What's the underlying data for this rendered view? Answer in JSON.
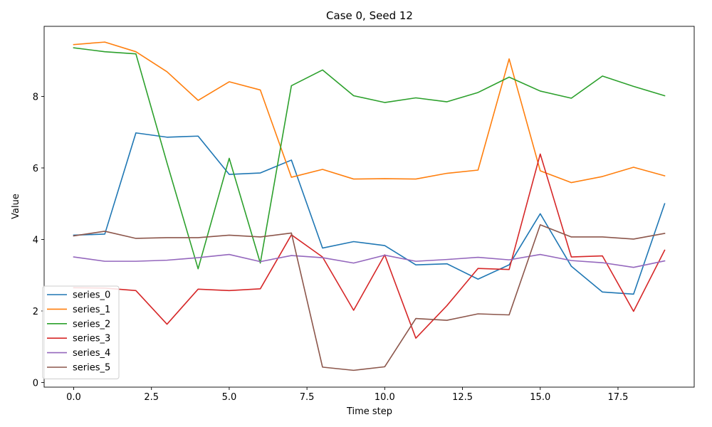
{
  "chart_data": {
    "type": "line",
    "title": "Case 0, Seed 12",
    "xlabel": "Time step",
    "ylabel": "Value",
    "xlim": [
      -0.95,
      19.95
    ],
    "ylim": [
      -0.13,
      9.96
    ],
    "xticks": [
      0.0,
      2.5,
      5.0,
      7.5,
      10.0,
      12.5,
      15.0,
      17.5
    ],
    "xtick_labels": [
      "0.0",
      "2.5",
      "5.0",
      "7.5",
      "10.0",
      "12.5",
      "15.0",
      "17.5"
    ],
    "yticks": [
      0,
      2,
      4,
      6,
      8
    ],
    "ytick_labels": [
      "0",
      "2",
      "4",
      "6",
      "8"
    ],
    "grid": false,
    "legend_position": "lower-left",
    "x": [
      0,
      1,
      2,
      3,
      4,
      5,
      6,
      7,
      8,
      9,
      10,
      11,
      12,
      13,
      14,
      15,
      16,
      17,
      18,
      19
    ],
    "series": [
      {
        "name": "series_0",
        "color": "#1f77b4",
        "values": [
          4.12,
          4.15,
          6.98,
          6.86,
          6.89,
          5.82,
          5.86,
          6.22,
          3.76,
          3.94,
          3.83,
          3.29,
          3.32,
          2.89,
          3.29,
          4.72,
          3.25,
          2.53,
          2.47,
          5.0
        ]
      },
      {
        "name": "series_1",
        "color": "#ff7f0e",
        "values": [
          9.45,
          9.52,
          9.25,
          8.69,
          7.89,
          8.41,
          8.18,
          5.74,
          5.96,
          5.69,
          5.7,
          5.69,
          5.85,
          5.94,
          9.05,
          5.92,
          5.59,
          5.76,
          6.02,
          5.78
        ]
      },
      {
        "name": "series_2",
        "color": "#2ca02c",
        "values": [
          9.36,
          9.25,
          9.19,
          6.14,
          3.18,
          6.27,
          3.34,
          8.3,
          8.74,
          8.02,
          7.83,
          7.96,
          7.85,
          8.11,
          8.54,
          8.15,
          7.95,
          8.57,
          8.28,
          8.02
        ]
      },
      {
        "name": "series_3",
        "color": "#d62728",
        "values": [
          2.65,
          2.64,
          2.57,
          1.63,
          2.61,
          2.57,
          2.62,
          4.13,
          3.51,
          2.02,
          3.57,
          1.24,
          2.15,
          3.19,
          3.16,
          6.39,
          3.51,
          3.54,
          1.99,
          3.7
        ]
      },
      {
        "name": "series_4",
        "color": "#9467bd",
        "values": [
          3.51,
          3.39,
          3.39,
          3.42,
          3.49,
          3.58,
          3.38,
          3.55,
          3.49,
          3.34,
          3.56,
          3.39,
          3.44,
          3.5,
          3.43,
          3.58,
          3.41,
          3.35,
          3.22,
          3.4
        ]
      },
      {
        "name": "series_5",
        "color": "#8c564b",
        "values": [
          4.1,
          4.23,
          4.03,
          4.05,
          4.05,
          4.12,
          4.07,
          4.18,
          0.43,
          0.34,
          0.44,
          1.79,
          1.74,
          1.92,
          1.89,
          4.41,
          4.07,
          4.07,
          4.01,
          4.17
        ]
      }
    ]
  }
}
